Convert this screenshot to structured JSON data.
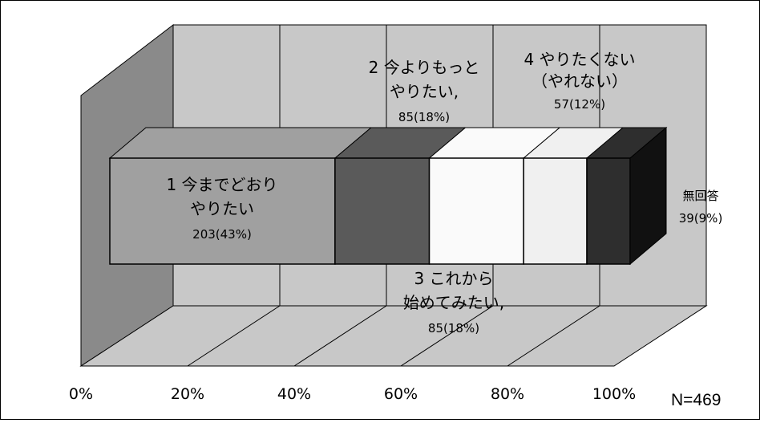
{
  "chart_data": {
    "type": "bar",
    "orientation": "horizontal",
    "stacked": true,
    "style_3d": true,
    "x_ticks": [
      "0%",
      "20%",
      "40%",
      "60%",
      "80%",
      "100%"
    ],
    "xlim": [
      0,
      100
    ],
    "grid": true,
    "segments": [
      {
        "label_lines": [
          "1 今までどおり",
          "やりたい"
        ],
        "value_text": "203(43%)",
        "count": 203,
        "percent": 43,
        "color": "#a0a0a0"
      },
      {
        "label_lines": [
          "2 今よりもっと",
          "やりたい,"
        ],
        "value_text": "85(18%)",
        "count": 85,
        "percent": 18,
        "color": "#5a5a5a"
      },
      {
        "label_lines": [
          "3 これから",
          "始めてみたい,"
        ],
        "value_text": "85(18%)",
        "count": 85,
        "percent": 18,
        "color": "#fafafa"
      },
      {
        "label_lines": [
          "4 やりたくない",
          "（やれない）"
        ],
        "value_text": "57(12%)",
        "count": 57,
        "percent": 12,
        "color": "#f0f0f0"
      },
      {
        "label_lines": [
          "無回答"
        ],
        "value_text": "39(9%)",
        "count": 39,
        "percent": 9,
        "color": "#2e2e2e"
      }
    ],
    "n_label": "N=469"
  }
}
